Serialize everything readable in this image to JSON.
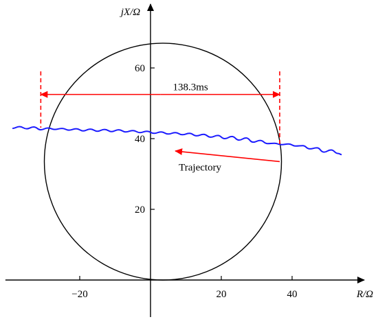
{
  "chart_data": {
    "type": "scatter",
    "title": "",
    "xlabel": "R/Ω",
    "ylabel": "jX/Ω",
    "xlim": [
      -41,
      60
    ],
    "ylim": [
      -10,
      78
    ],
    "x_ticks": [
      -20,
      20,
      40
    ],
    "y_ticks": [
      20,
      40,
      60
    ],
    "x_tick_labels": [
      "−20",
      "20",
      "40"
    ],
    "y_tick_labels": [
      "20",
      "40",
      "60"
    ],
    "grid": false,
    "colors": {
      "circle": "#000000",
      "trajectory": "#1a1aff",
      "annotation": "#ff0000"
    },
    "series": [
      {
        "kind": "circle",
        "center": [
          3.5,
          33.5
        ],
        "radius": 33.5
      },
      {
        "kind": "trajectory",
        "x": [
          -39,
          -37,
          -35,
          -33,
          -31,
          -29,
          -27,
          -25,
          -23,
          -21,
          -19,
          -17,
          -15,
          -13,
          -11,
          -9,
          -7,
          -5,
          -3,
          -1,
          1,
          3,
          5,
          7,
          9,
          11,
          13,
          15,
          17,
          19,
          21,
          23,
          25,
          27,
          29,
          31,
          33,
          35,
          37,
          39,
          41,
          43,
          45,
          47,
          49,
          51,
          53,
          54
        ],
        "y": [
          42.9,
          43.4,
          42.8,
          43.3,
          42.5,
          43.0,
          42.6,
          42.9,
          42.4,
          42.8,
          42.2,
          42.7,
          42.1,
          42.6,
          42.0,
          42.5,
          41.9,
          42.3,
          41.7,
          42.1,
          41.5,
          41.9,
          41.3,
          41.7,
          41.1,
          41.5,
          40.8,
          41.2,
          40.4,
          40.9,
          40.0,
          40.6,
          39.6,
          40.2,
          39.0,
          39.5,
          38.6,
          38.7,
          38.3,
          38.5,
          37.9,
          38.0,
          37.1,
          37.4,
          36.2,
          36.8,
          35.8,
          35.5
        ]
      }
    ],
    "annotations": {
      "duration_label": "138.3ms",
      "duration_span_x": [
        -31,
        36.5
      ],
      "duration_y": 52.5,
      "trajectory_label": "Trajectory",
      "arrow_from": [
        36.5,
        33.5
      ],
      "arrow_to": [
        7,
        36.5
      ],
      "trajectory_label_at": [
        14,
        31
      ]
    }
  }
}
